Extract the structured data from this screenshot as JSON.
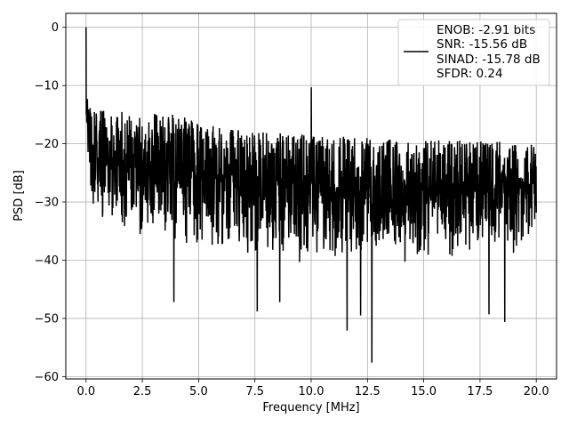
{
  "chart_data": {
    "type": "line",
    "title": "",
    "xlabel": "Frequency [MHz]",
    "ylabel": "PSD [dB]",
    "xlim": [
      -0.9,
      20.9
    ],
    "ylim": [
      -60.4,
      2.4
    ],
    "xticks": [
      0.0,
      2.5,
      5.0,
      7.5,
      10.0,
      12.5,
      15.0,
      17.5,
      20.0
    ],
    "xtick_labels": [
      "0.0",
      "2.5",
      "5.0",
      "7.5",
      "10.0",
      "12.5",
      "15.0",
      "17.5",
      "20.0"
    ],
    "yticks": [
      0,
      -10,
      -20,
      -30,
      -40,
      -50,
      -60
    ],
    "ytick_labels": [
      "0",
      "−10",
      "−20",
      "−30",
      "−40",
      "−50",
      "−60"
    ],
    "grid": true,
    "line_color": "#000000",
    "legend": {
      "placement": "top-right",
      "entries": [
        "ENOB: -2.91 bits",
        "SNR: -15.56 dB",
        "SINAD: -15.78 dB",
        "SFDR: 0.24"
      ]
    },
    "series": [
      {
        "x_range": [
          0.0,
          20.0
        ],
        "peaks": [
          {
            "x": 0.0,
            "y": 0
          },
          {
            "x": 10.0,
            "y": -10.3
          }
        ],
        "dips": [
          {
            "x": 3.9,
            "y": -47.2
          },
          {
            "x": 7.6,
            "y": -48.8
          },
          {
            "x": 8.6,
            "y": -47.2
          },
          {
            "x": 11.6,
            "y": -52.1
          },
          {
            "x": 12.2,
            "y": -49.5
          },
          {
            "x": 12.7,
            "y": -57.6
          },
          {
            "x": 17.9,
            "y": -49.3
          },
          {
            "x": 18.6,
            "y": -50.6
          }
        ],
        "upper_envelope": [
          -13,
          -13,
          -16,
          -17,
          -17.5,
          -18,
          -18.5
        ],
        "lower_envelope": [
          -32,
          -36,
          -38,
          -40,
          -40,
          -39,
          -38
        ]
      }
    ]
  }
}
